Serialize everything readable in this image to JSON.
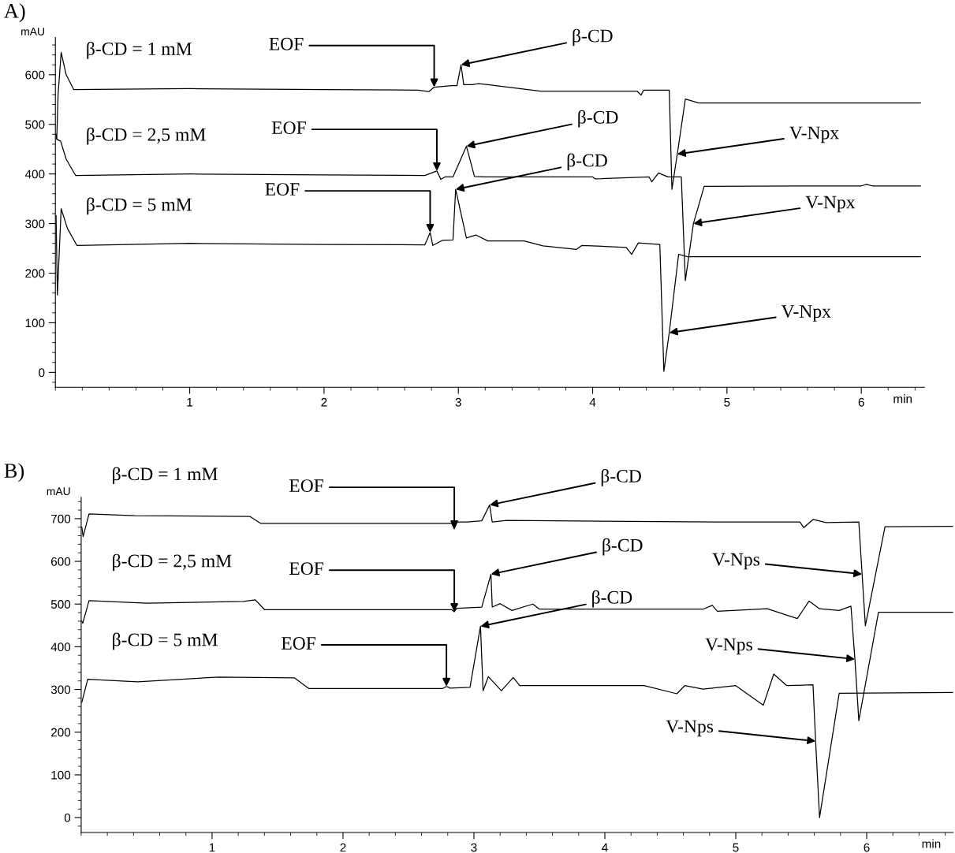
{
  "chart_data": [
    {
      "type": "line",
      "title": "A)",
      "xlabel": "min",
      "ylabel": "mAU",
      "xlim": [
        0,
        6.47
      ],
      "ylim": [
        -30,
        675
      ],
      "xticks": [
        1,
        2,
        3,
        4,
        5,
        6
      ],
      "yticks": [
        0,
        100,
        200,
        300,
        400,
        500,
        600
      ],
      "grid": false,
      "series": [
        {
          "name": "β-CD = 1 mM",
          "color": "#000000",
          "x": [
            0.005,
            0.01,
            0.02,
            0.043,
            0.08,
            0.137,
            1.0,
            2.0,
            2.7,
            2.78,
            2.82,
            2.95,
            2.99,
            3.02,
            3.04,
            3.1,
            3.15,
            3.22,
            3.61,
            4.33,
            4.36,
            4.38,
            4.57,
            4.59,
            4.63,
            4.69,
            4.79,
            6.44
          ],
          "values": [
            480,
            470,
            560,
            645,
            600,
            570,
            572,
            570,
            569,
            566,
            575,
            578,
            578,
            620,
            580,
            580,
            582,
            580,
            567,
            567,
            559,
            569,
            569,
            369,
            440,
            551,
            543,
            543
          ]
        },
        {
          "name": "β-CD = 2,5 mM",
          "color": "#000000",
          "x": [
            0.005,
            0.012,
            0.039,
            0.08,
            0.15,
            1.0,
            2.0,
            2.75,
            2.84,
            2.87,
            2.9,
            2.96,
            3.06,
            3.12,
            3.2,
            4.0,
            4.02,
            4.42,
            4.44,
            4.49,
            4.56,
            4.66,
            4.69,
            4.75,
            4.83,
            6.0,
            6.04,
            6.08,
            6.44
          ],
          "values": [
            474,
            470,
            466,
            430,
            397,
            400,
            398,
            397,
            406,
            389,
            394,
            394,
            456,
            395,
            394,
            394,
            390,
            394,
            384,
            402,
            394,
            394,
            185,
            300,
            375,
            376,
            379,
            376,
            376
          ]
        },
        {
          "name": "β-CD = 5 mM",
          "color": "#000000",
          "x": [
            0.005,
            0.015,
            0.043,
            0.09,
            0.16,
            1.0,
            2.0,
            2.75,
            2.79,
            2.81,
            2.88,
            2.96,
            2.98,
            3.06,
            3.13,
            3.22,
            3.49,
            3.63,
            3.88,
            3.92,
            4.25,
            4.29,
            4.34,
            4.5,
            4.53,
            4.57,
            4.64,
            4.71,
            6.44
          ],
          "values": [
            316,
            156,
            330,
            290,
            256,
            260,
            258,
            257,
            282,
            256,
            266,
            267,
            369,
            271,
            277,
            265,
            265,
            255,
            248,
            256,
            252,
            238,
            261,
            258,
            2,
            80,
            238,
            233,
            233
          ]
        }
      ],
      "annotations": [
        {
          "text": "EOF",
          "x": 2.82,
          "y": 575
        },
        {
          "text": "β-CD",
          "x": 3.02,
          "y": 620
        },
        {
          "text": "V-Npx",
          "x": 4.63,
          "y": 440
        },
        {
          "text": "EOF",
          "x": 2.84,
          "y": 406
        },
        {
          "text": "β-CD",
          "x": 3.06,
          "y": 456
        },
        {
          "text": "V-Npx",
          "x": 4.75,
          "y": 300
        },
        {
          "text": "EOF",
          "x": 2.79,
          "y": 282
        },
        {
          "text": "β-CD",
          "x": 2.98,
          "y": 369
        },
        {
          "text": "V-Npx",
          "x": 4.57,
          "y": 80
        }
      ]
    },
    {
      "type": "line",
      "title": "B)",
      "xlabel": "min",
      "ylabel": "mAU",
      "xlim": [
        0,
        6.66
      ],
      "ylim": [
        -35,
        750
      ],
      "xticks": [
        1,
        2,
        3,
        4,
        5,
        6
      ],
      "yticks": [
        0,
        100,
        200,
        300,
        400,
        500,
        600,
        700
      ],
      "grid": false,
      "series": [
        {
          "name": "β-CD = 1 mM",
          "color": "#000000",
          "x": [
            0.005,
            0.015,
            0.06,
            0.41,
            1.29,
            1.37,
            2.0,
            2.83,
            2.85,
            2.87,
            2.95,
            3.06,
            3.12,
            3.14,
            3.25,
            4.85,
            5.49,
            5.52,
            5.59,
            5.69,
            5.94,
            5.965,
            5.99,
            6.14,
            6.66
          ],
          "values": [
            680,
            658,
            711,
            707,
            705,
            689,
            689,
            689,
            676,
            692,
            692,
            695,
            732,
            692,
            696,
            692,
            692,
            679,
            698,
            691,
            692,
            570,
            449,
            681,
            682
          ]
        },
        {
          "name": "β-CD = 2,5 mM",
          "color": "#000000",
          "x": [
            0.005,
            0.012,
            0.06,
            0.5,
            1.24,
            1.33,
            1.4,
            2.0,
            2.83,
            2.85,
            2.87,
            3.06,
            3.13,
            3.14,
            3.2,
            3.29,
            3.45,
            3.5,
            4.75,
            4.82,
            4.86,
            5.24,
            5.47,
            5.56,
            5.64,
            5.79,
            5.88,
            5.91,
            5.94,
            6.09,
            6.66
          ],
          "values": [
            460,
            455,
            508,
            502,
            506,
            510,
            487,
            487,
            487,
            482,
            490,
            493,
            570,
            493,
            501,
            485,
            500,
            488,
            488,
            497,
            483,
            489,
            466,
            507,
            489,
            485,
            495,
            371,
            227,
            481,
            481
          ]
        },
        {
          "name": "β-CD = 5 mM",
          "color": "#000000",
          "x": [
            0.005,
            0.05,
            0.43,
            1.05,
            1.63,
            1.74,
            2.0,
            2.76,
            2.79,
            2.82,
            2.97,
            3.05,
            3.07,
            3.11,
            3.21,
            3.3,
            3.35,
            3.75,
            4.3,
            4.55,
            4.61,
            4.75,
            5.0,
            5.21,
            5.29,
            5.39,
            5.59,
            5.61,
            5.64,
            5.79,
            6.66
          ],
          "values": [
            270,
            324,
            318,
            329,
            327,
            302,
            302,
            302,
            307,
            303,
            305,
            448,
            297,
            330,
            297,
            328,
            309,
            309,
            309,
            290,
            309,
            301,
            309,
            263,
            336,
            309,
            311,
            179,
            0,
            291,
            293
          ]
        }
      ],
      "annotations": [
        {
          "text": "EOF",
          "x": 2.85,
          "y": 676
        },
        {
          "text": "β-CD",
          "x": 3.12,
          "y": 732
        },
        {
          "text": "V-Nps",
          "x": 5.965,
          "y": 570
        },
        {
          "text": "EOF",
          "x": 2.85,
          "y": 482
        },
        {
          "text": "β-CD",
          "x": 3.13,
          "y": 570
        },
        {
          "text": "V-Nps",
          "x": 5.91,
          "y": 371
        },
        {
          "text": "EOF",
          "x": 2.79,
          "y": 307
        },
        {
          "text": "β-CD",
          "x": 3.05,
          "y": 448
        },
        {
          "text": "V-Nps",
          "x": 5.61,
          "y": 179
        }
      ]
    }
  ]
}
